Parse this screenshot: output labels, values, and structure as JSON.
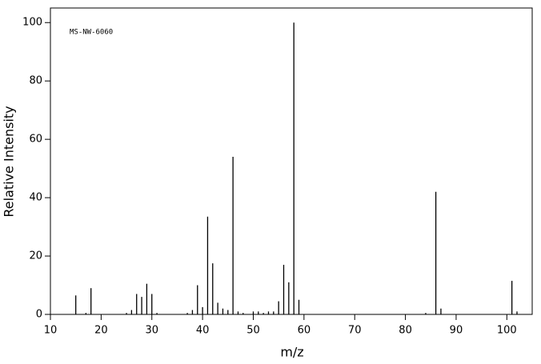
{
  "chart_data": {
    "type": "stick",
    "annotation": "MS-NW-6060",
    "xlabel": "m/z",
    "ylabel": "Relative Intensity",
    "color": "#000000",
    "x": [
      15,
      17,
      18,
      25,
      26,
      27,
      28,
      29,
      30,
      31,
      37,
      38,
      39,
      40,
      41,
      42,
      43,
      44,
      45,
      46,
      47,
      48,
      50,
      51,
      52,
      53,
      54,
      55,
      56,
      57,
      58,
      59,
      84,
      86,
      87,
      101,
      102
    ],
    "values": [
      6.5,
      0.5,
      9,
      0.5,
      1.5,
      7,
      6,
      10.5,
      7,
      0.5,
      0.5,
      1.5,
      10,
      2.5,
      33.5,
      17.5,
      4,
      2,
      1.5,
      54,
      1,
      0.5,
      1,
      1,
      0.5,
      1,
      1,
      4.5,
      17,
      11,
      100,
      5,
      0.5,
      42,
      2,
      11.5,
      1
    ],
    "xlim": [
      10,
      105
    ],
    "ylim": [
      0,
      105
    ],
    "xticks": [
      10,
      20,
      30,
      40,
      50,
      60,
      70,
      80,
      90,
      100
    ],
    "yticks": [
      0,
      20,
      40,
      60,
      80,
      100
    ]
  }
}
